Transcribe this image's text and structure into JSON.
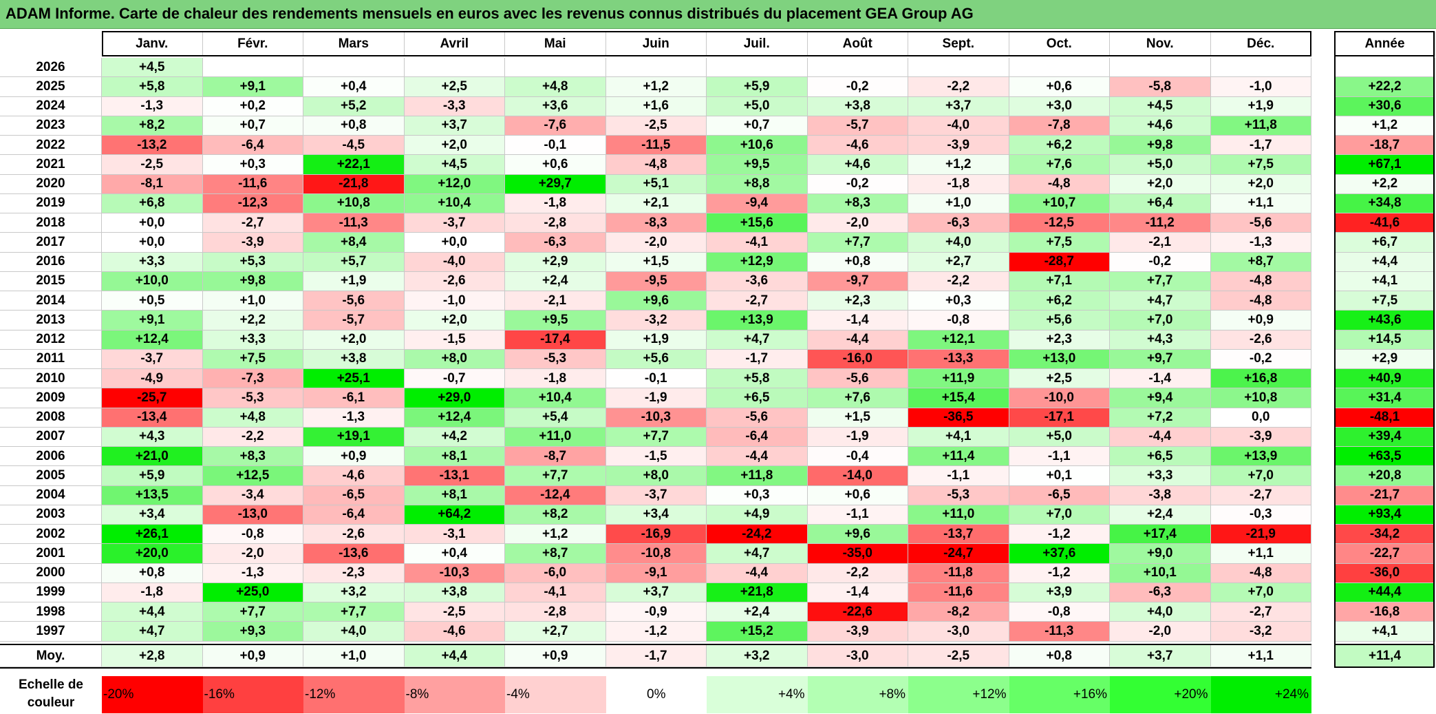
{
  "title": "ADAM Informe. Carte de chaleur des rendements mensuels en euros avec les revenus connus distribués du placement GEA Group AG",
  "chart_data": {
    "type": "heatmap",
    "title": "ADAM Informe. Carte de chaleur des rendements mensuels en euros avec les revenus connus distribués du placement GEA Group AG",
    "columns": [
      "Janv.",
      "Févr.",
      "Mars",
      "Avril",
      "Mai",
      "Juin",
      "Juil.",
      "Août",
      "Sept.",
      "Oct.",
      "Nov.",
      "Déc."
    ],
    "annual_label": "Année",
    "rows": [
      {
        "year": "2026",
        "values": [
          "+4,5",
          "",
          "",
          "",
          "",
          "",
          "",
          "",
          "",
          "",
          "",
          ""
        ],
        "annual": ""
      },
      {
        "year": "2025",
        "values": [
          "+5,8",
          "+9,1",
          "+0,4",
          "+2,5",
          "+4,8",
          "+1,2",
          "+5,9",
          "-0,2",
          "-2,2",
          "+0,6",
          "-5,8",
          "-1,0"
        ],
        "annual": "+22,2"
      },
      {
        "year": "2024",
        "values": [
          "-1,3",
          "+0,2",
          "+5,2",
          "-3,3",
          "+3,6",
          "+1,6",
          "+5,0",
          "+3,8",
          "+3,7",
          "+3,0",
          "+4,5",
          "+1,9"
        ],
        "annual": "+30,6"
      },
      {
        "year": "2023",
        "values": [
          "+8,2",
          "+0,7",
          "+0,8",
          "+3,7",
          "-7,6",
          "-2,5",
          "+0,7",
          "-5,7",
          "-4,0",
          "-7,8",
          "+4,6",
          "+11,8"
        ],
        "annual": "+1,2"
      },
      {
        "year": "2022",
        "values": [
          "-13,2",
          "-6,4",
          "-4,5",
          "+2,0",
          "-0,1",
          "-11,5",
          "+10,6",
          "-4,6",
          "-3,9",
          "+6,2",
          "+9,8",
          "-1,7"
        ],
        "annual": "-18,7"
      },
      {
        "year": "2021",
        "values": [
          "-2,5",
          "+0,3",
          "+22,1",
          "+4,5",
          "+0,6",
          "-4,8",
          "+9,5",
          "+4,6",
          "+1,2",
          "+7,6",
          "+5,0",
          "+7,5"
        ],
        "annual": "+67,1"
      },
      {
        "year": "2020",
        "values": [
          "-8,1",
          "-11,6",
          "-21,8",
          "+12,0",
          "+29,7",
          "+5,1",
          "+8,8",
          "-0,2",
          "-1,8",
          "-4,8",
          "+2,0",
          "+2,0"
        ],
        "annual": "+2,2"
      },
      {
        "year": "2019",
        "values": [
          "+6,8",
          "-12,3",
          "+10,8",
          "+10,4",
          "-1,8",
          "+2,1",
          "-9,4",
          "+8,3",
          "+1,0",
          "+10,7",
          "+6,4",
          "+1,1"
        ],
        "annual": "+34,8"
      },
      {
        "year": "2018",
        "values": [
          "+0,0",
          "-2,7",
          "-11,3",
          "-3,7",
          "-2,8",
          "-8,3",
          "+15,6",
          "-2,0",
          "-6,3",
          "-12,5",
          "-11,2",
          "-5,6"
        ],
        "annual": "-41,6"
      },
      {
        "year": "2017",
        "values": [
          "+0,0",
          "-3,9",
          "+8,4",
          "+0,0",
          "-6,3",
          "-2,0",
          "-4,1",
          "+7,7",
          "+4,0",
          "+7,5",
          "-2,1",
          "-1,3"
        ],
        "annual": "+6,7"
      },
      {
        "year": "2016",
        "values": [
          "+3,3",
          "+5,3",
          "+5,7",
          "-4,0",
          "+2,9",
          "+1,5",
          "+12,9",
          "+0,8",
          "+2,7",
          "-28,7",
          "-0,2",
          "+8,7"
        ],
        "annual": "+4,4"
      },
      {
        "year": "2015",
        "values": [
          "+10,0",
          "+9,8",
          "+1,9",
          "-2,6",
          "+2,4",
          "-9,5",
          "-3,6",
          "-9,7",
          "-2,2",
          "+7,1",
          "+7,7",
          "-4,8"
        ],
        "annual": "+4,1"
      },
      {
        "year": "2014",
        "values": [
          "+0,5",
          "+1,0",
          "-5,6",
          "-1,0",
          "-2,1",
          "+9,6",
          "-2,7",
          "+2,3",
          "+0,3",
          "+6,2",
          "+4,7",
          "-4,8"
        ],
        "annual": "+7,5"
      },
      {
        "year": "2013",
        "values": [
          "+9,1",
          "+2,2",
          "-5,7",
          "+2,0",
          "+9,5",
          "-3,2",
          "+13,9",
          "-1,4",
          "-0,8",
          "+5,6",
          "+7,0",
          "+0,9"
        ],
        "annual": "+43,6"
      },
      {
        "year": "2012",
        "values": [
          "+12,4",
          "+3,3",
          "+2,0",
          "-1,5",
          "-17,4",
          "+1,9",
          "+4,7",
          "-4,4",
          "+12,1",
          "+2,3",
          "+4,3",
          "-2,6"
        ],
        "annual": "+14,5"
      },
      {
        "year": "2011",
        "values": [
          "-3,7",
          "+7,5",
          "+3,8",
          "+8,0",
          "-5,3",
          "+5,6",
          "-1,7",
          "-16,0",
          "-13,3",
          "+13,0",
          "+9,7",
          "-0,2"
        ],
        "annual": "+2,9"
      },
      {
        "year": "2010",
        "values": [
          "-4,9",
          "-7,3",
          "+25,1",
          "-0,7",
          "-1,8",
          "-0,1",
          "+5,8",
          "-5,6",
          "+11,9",
          "+2,5",
          "-1,4",
          "+16,8"
        ],
        "annual": "+40,9"
      },
      {
        "year": "2009",
        "values": [
          "-25,7",
          "-5,3",
          "-6,1",
          "+29,0",
          "+10,4",
          "-1,9",
          "+6,5",
          "+7,6",
          "+15,4",
          "-10,0",
          "+9,4",
          "+10,8"
        ],
        "annual": "+31,4"
      },
      {
        "year": "2008",
        "values": [
          "-13,4",
          "+4,8",
          "-1,3",
          "+12,4",
          "+5,4",
          "-10,3",
          "-5,6",
          "+1,5",
          "-36,5",
          "-17,1",
          "+7,2",
          "0,0"
        ],
        "annual": "-48,1"
      },
      {
        "year": "2007",
        "values": [
          "+4,3",
          "-2,2",
          "+19,1",
          "+4,2",
          "+11,0",
          "+7,7",
          "-6,4",
          "-1,9",
          "+4,1",
          "+5,0",
          "-4,4",
          "-3,9"
        ],
        "annual": "+39,4"
      },
      {
        "year": "2006",
        "values": [
          "+21,0",
          "+8,3",
          "+0,9",
          "+8,1",
          "-8,7",
          "-1,5",
          "-4,4",
          "-0,4",
          "+11,4",
          "-1,1",
          "+6,5",
          "+13,9"
        ],
        "annual": "+63,5"
      },
      {
        "year": "2005",
        "values": [
          "+5,9",
          "+12,5",
          "-4,6",
          "-13,1",
          "+7,7",
          "+8,0",
          "+11,8",
          "-14,0",
          "-1,1",
          "+0,1",
          "+3,3",
          "+7,0"
        ],
        "annual": "+20,8"
      },
      {
        "year": "2004",
        "values": [
          "+13,5",
          "-3,4",
          "-6,5",
          "+8,1",
          "-12,4",
          "-3,7",
          "+0,3",
          "+0,6",
          "-5,3",
          "-6,5",
          "-3,8",
          "-2,7"
        ],
        "annual": "-21,7"
      },
      {
        "year": "2003",
        "values": [
          "+3,4",
          "-13,0",
          "-6,4",
          "+64,2",
          "+8,2",
          "+3,4",
          "+4,9",
          "-1,1",
          "+11,0",
          "+7,0",
          "+2,4",
          "-0,3"
        ],
        "annual": "+93,4"
      },
      {
        "year": "2002",
        "values": [
          "+26,1",
          "-0,8",
          "-2,6",
          "-3,1",
          "+1,2",
          "-16,9",
          "-24,2",
          "+9,6",
          "-13,7",
          "-1,2",
          "+17,4",
          "-21,9"
        ],
        "annual": "-34,2"
      },
      {
        "year": "2001",
        "values": [
          "+20,0",
          "-2,0",
          "-13,6",
          "+0,4",
          "+8,7",
          "-10,8",
          "+4,7",
          "-35,0",
          "-24,7",
          "+37,6",
          "+9,0",
          "+1,1"
        ],
        "annual": "-22,7"
      },
      {
        "year": "2000",
        "values": [
          "+0,8",
          "-1,3",
          "-2,3",
          "-10,3",
          "-6,0",
          "-9,1",
          "-4,4",
          "-2,2",
          "-11,8",
          "-1,2",
          "+10,1",
          "-4,8"
        ],
        "annual": "-36,0"
      },
      {
        "year": "1999",
        "values": [
          "-1,8",
          "+25,0",
          "+3,2",
          "+3,8",
          "-4,1",
          "+3,7",
          "+21,8",
          "-1,4",
          "-11,6",
          "+3,9",
          "-6,3",
          "+7,0"
        ],
        "annual": "+44,4"
      },
      {
        "year": "1998",
        "values": [
          "+4,4",
          "+7,7",
          "+7,7",
          "-2,5",
          "-2,8",
          "-0,9",
          "+2,4",
          "-22,6",
          "-8,2",
          "-0,8",
          "+4,0",
          "-2,7"
        ],
        "annual": "-16,8"
      },
      {
        "year": "1997",
        "values": [
          "+4,7",
          "+9,3",
          "+4,0",
          "-4,6",
          "+2,7",
          "-1,2",
          "+15,2",
          "-3,9",
          "-3,0",
          "-11,3",
          "-2,0",
          "-3,2"
        ],
        "annual": "+4,1"
      }
    ],
    "average": {
      "label": "Moy.",
      "values": [
        "+2,8",
        "+0,9",
        "+1,0",
        "+4,4",
        "+0,9",
        "-1,7",
        "+3,2",
        "-3,0",
        "-2,5",
        "+0,8",
        "+3,7",
        "+1,1"
      ],
      "annual": "+11,4"
    },
    "color_scale": {
      "label_line1": "Echelle de",
      "label_line2": "couleur",
      "steps": [
        "-20%",
        "-16%",
        "-12%",
        "-8%",
        "-4%",
        "0%",
        "+4%",
        "+8%",
        "+12%",
        "+16%",
        "+20%",
        "+24%"
      ],
      "colors": [
        "#ff0000",
        "#ff4040",
        "#ff7070",
        "#ffa0a0",
        "#ffd0d0",
        "#ffffff",
        "#d9ffd9",
        "#b3ffb3",
        "#8cff8c",
        "#66ff66",
        "#33ff33",
        "#00ee00"
      ]
    }
  }
}
